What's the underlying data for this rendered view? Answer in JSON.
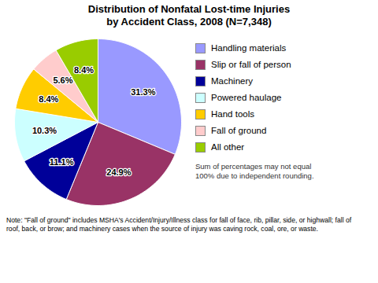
{
  "chart_data": {
    "type": "pie",
    "title": "Distribution of Nonfatal Lost-time Injuries\nby Accident Class, 2008 (N=7,348)",
    "categories": [
      "Handling materials",
      "Slip or fall of person",
      "Machinery",
      "Powered haulage",
      "Hand tools",
      "Fall of ground",
      "All other"
    ],
    "values": [
      31.3,
      24.9,
      11.1,
      10.3,
      8.4,
      5.6,
      8.4
    ],
    "value_labels": [
      "31.3%",
      "24.9%",
      "11.1%",
      "10.3%",
      "8.4%",
      "5.6%",
      "8.4%"
    ],
    "colors": [
      "#9999FF",
      "#993366",
      "#000099",
      "#CCFFFF",
      "#FFCC00",
      "#FFCCCC",
      "#99CC00"
    ],
    "data_labels": true,
    "legend": "right",
    "annotations": [
      "Sum of percentages may not equal\n100% due to independent rounding.",
      "Note: \"Fall of ground\" includes MSHA's Accident/Injury/Illness class for fall of face, rib, pillar, side, or highwall; fall of\nroof, back, or brow; and machinery cases when the source of injury was caving rock, coal, ore, or waste."
    ]
  }
}
